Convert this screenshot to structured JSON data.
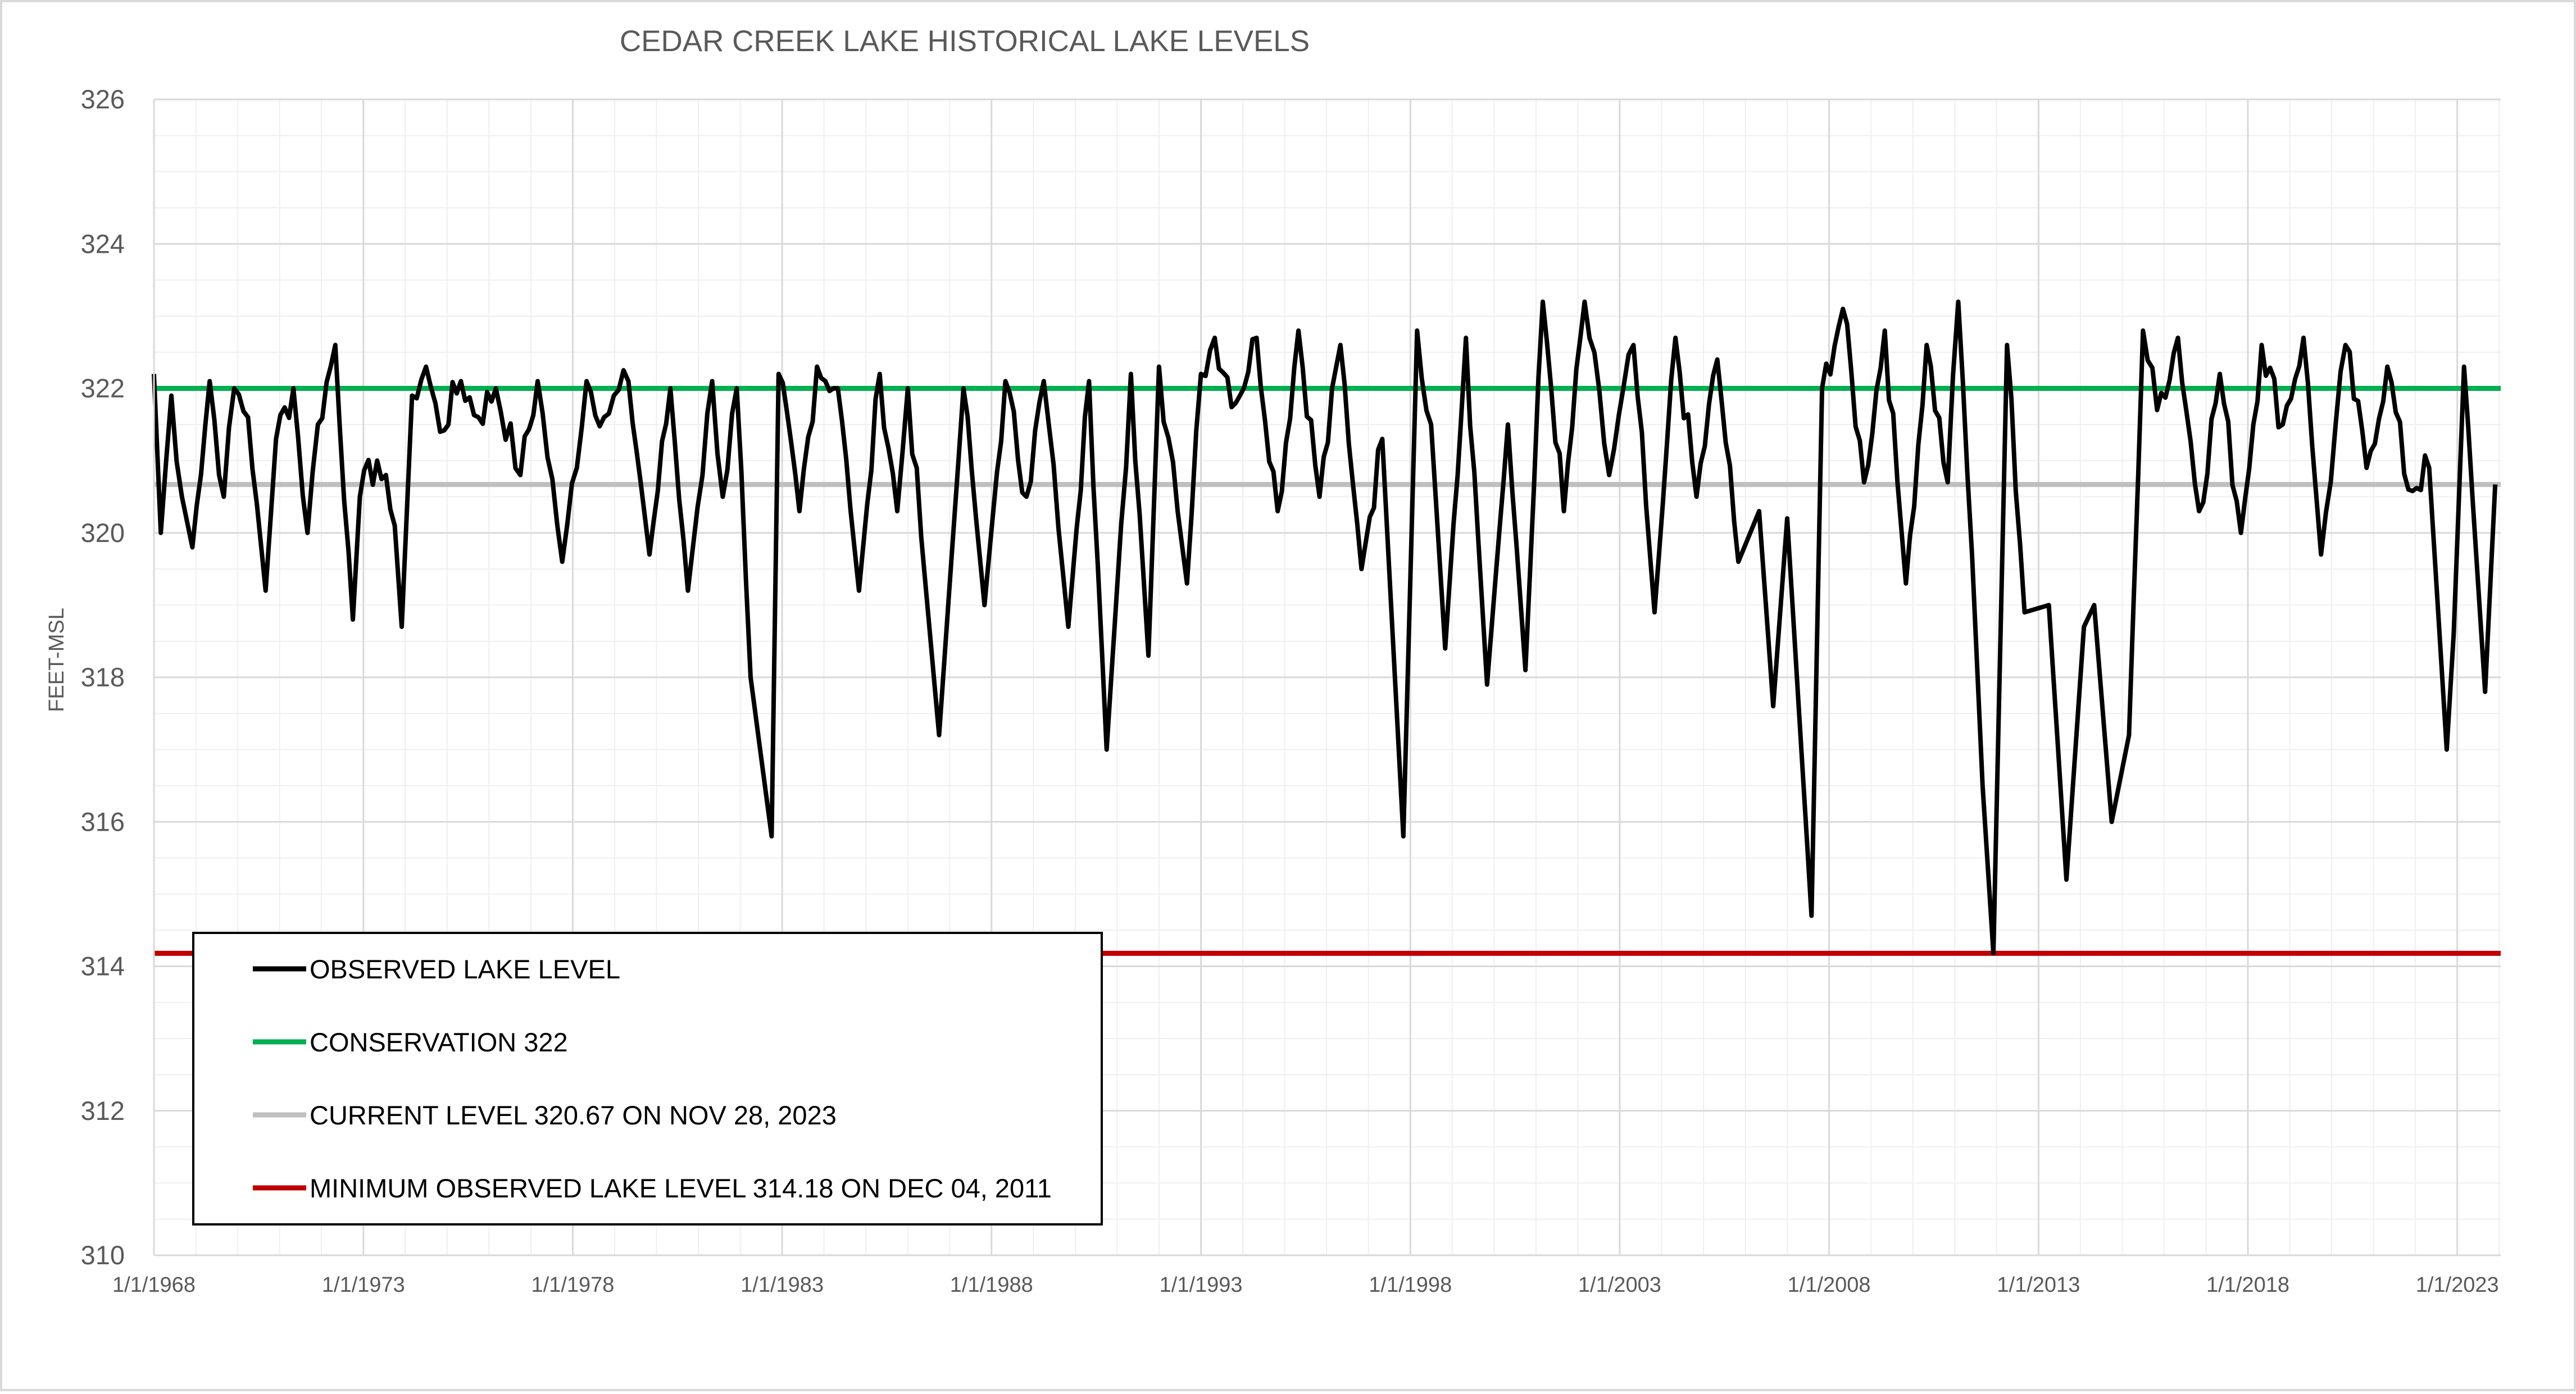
{
  "chart_data": {
    "type": "line",
    "title": "CEDAR CREEK LAKE HISTORICAL LAKE LEVELS",
    "xlabel": "",
    "ylabel": "FEET-MSL",
    "x_axis": "date",
    "xlim": [
      "1968-01-01",
      "2024-01-15"
    ],
    "ylim": [
      310,
      326
    ],
    "y_ticks": [
      "310",
      "312",
      "314",
      "316",
      "318",
      "320",
      "322",
      "324",
      "326"
    ],
    "x_ticks": [
      {
        "date": "1968-01-01",
        "label": "1/1/1968"
      },
      {
        "date": "1973-01-01",
        "label": "1/1/1973"
      },
      {
        "date": "1978-01-01",
        "label": "1/1/1978"
      },
      {
        "date": "1983-01-01",
        "label": "1/1/1983"
      },
      {
        "date": "1988-01-01",
        "label": "1/1/1988"
      },
      {
        "date": "1993-01-01",
        "label": "1/1/1993"
      },
      {
        "date": "1998-01-01",
        "label": "1/1/1998"
      },
      {
        "date": "2003-01-01",
        "label": "1/1/2003"
      },
      {
        "date": "2008-01-01",
        "label": "1/1/2008"
      },
      {
        "date": "2013-01-01",
        "label": "1/1/2013"
      },
      {
        "date": "2018-01-01",
        "label": "1/1/2018"
      },
      {
        "date": "2023-01-01",
        "label": "1/1/2023"
      }
    ],
    "grid": true,
    "legend_position": "bottom-left",
    "reference_lines": [
      {
        "name": "CONSERVATION 322",
        "y": 322.0,
        "color": "#00b050"
      },
      {
        "name": "CURRENT LEVEL 320.67 ON NOV 28, 2023",
        "y": 320.67,
        "color": "#bfbfbf"
      },
      {
        "name": "MINIMUM OBSERVED LAKE LEVEL 314.18 ON DEC 04, 2011",
        "y": 314.18,
        "color": "#c00000"
      }
    ],
    "series": [
      {
        "name": "OBSERVED LAKE LEVEL",
        "color": "#000000",
        "points": [
          [
            "1968-01-01",
            322.2
          ],
          [
            "1968-03-01",
            320.0
          ],
          [
            "1968-06-01",
            321.9
          ],
          [
            "1968-09-01",
            320.5
          ],
          [
            "1968-12-01",
            319.8
          ],
          [
            "1969-05-01",
            322.1
          ],
          [
            "1969-09-01",
            320.5
          ],
          [
            "1969-12-01",
            322.0
          ],
          [
            "1970-04-01",
            321.6
          ],
          [
            "1970-09-01",
            319.2
          ],
          [
            "1970-12-01",
            321.3
          ],
          [
            "1971-05-01",
            322.0
          ],
          [
            "1971-09-01",
            320.0
          ],
          [
            "1971-12-01",
            321.5
          ],
          [
            "1972-05-01",
            322.6
          ],
          [
            "1972-10-01",
            318.8
          ],
          [
            "1972-12-01",
            320.5
          ],
          [
            "1973-05-01",
            321.0
          ],
          [
            "1973-10-01",
            320.1
          ],
          [
            "1973-12-01",
            318.7
          ],
          [
            "1974-03-01",
            321.9
          ],
          [
            "1974-07-01",
            322.3
          ],
          [
            "1974-11-01",
            321.4
          ],
          [
            "1975-05-01",
            322.1
          ],
          [
            "1975-10-01",
            321.6
          ],
          [
            "1976-03-01",
            322.0
          ],
          [
            "1976-10-01",
            320.8
          ],
          [
            "1977-03-01",
            322.1
          ],
          [
            "1977-10-01",
            319.6
          ],
          [
            "1978-05-01",
            322.1
          ],
          [
            "1978-10-01",
            321.6
          ],
          [
            "1979-05-01",
            322.1
          ],
          [
            "1979-11-01",
            319.7
          ],
          [
            "1980-05-01",
            322.0
          ],
          [
            "1980-10-01",
            319.2
          ],
          [
            "1981-05-01",
            322.1
          ],
          [
            "1981-08-01",
            320.5
          ],
          [
            "1981-12-01",
            322.0
          ],
          [
            "1982-04-01",
            318.0
          ],
          [
            "1982-10-01",
            315.8
          ],
          [
            "1982-12-01",
            322.2
          ],
          [
            "1983-06-01",
            320.3
          ],
          [
            "1983-11-01",
            322.3
          ],
          [
            "1984-05-01",
            322.0
          ],
          [
            "1984-11-01",
            319.2
          ],
          [
            "1985-05-01",
            322.2
          ],
          [
            "1985-10-01",
            320.3
          ],
          [
            "1986-01-01",
            322.0
          ],
          [
            "1986-10-01",
            317.2
          ],
          [
            "1987-05-01",
            322.0
          ],
          [
            "1987-11-01",
            319.0
          ],
          [
            "1988-05-01",
            322.1
          ],
          [
            "1988-11-01",
            320.5
          ],
          [
            "1989-04-01",
            322.1
          ],
          [
            "1989-11-01",
            318.7
          ],
          [
            "1990-05-01",
            322.1
          ],
          [
            "1990-10-01",
            317.0
          ],
          [
            "1991-05-01",
            322.2
          ],
          [
            "1991-10-01",
            318.3
          ],
          [
            "1992-01-01",
            322.3
          ],
          [
            "1992-09-01",
            319.3
          ],
          [
            "1993-01-01",
            322.2
          ],
          [
            "1993-05-01",
            322.7
          ],
          [
            "1993-11-01",
            321.8
          ],
          [
            "1994-05-01",
            322.7
          ],
          [
            "1994-11-01",
            320.3
          ],
          [
            "1995-05-01",
            322.8
          ],
          [
            "1995-11-01",
            320.5
          ],
          [
            "1996-05-01",
            322.6
          ],
          [
            "1996-11-01",
            319.5
          ],
          [
            "1997-05-01",
            321.3
          ],
          [
            "1997-11-01",
            315.8
          ],
          [
            "1998-03-01",
            322.8
          ],
          [
            "1998-07-01",
            321.5
          ],
          [
            "1998-11-01",
            318.4
          ],
          [
            "1999-05-01",
            322.7
          ],
          [
            "1999-11-01",
            317.9
          ],
          [
            "2000-05-01",
            321.5
          ],
          [
            "2000-10-01",
            318.1
          ],
          [
            "2001-03-01",
            323.2
          ],
          [
            "2001-09-01",
            320.3
          ],
          [
            "2002-03-01",
            323.2
          ],
          [
            "2002-10-01",
            320.8
          ],
          [
            "2003-05-01",
            322.6
          ],
          [
            "2003-11-01",
            318.9
          ],
          [
            "2004-05-01",
            322.7
          ],
          [
            "2004-11-01",
            320.5
          ],
          [
            "2005-05-01",
            322.4
          ],
          [
            "2005-11-01",
            319.6
          ],
          [
            "2006-05-01",
            320.3
          ],
          [
            "2006-09-01",
            317.6
          ],
          [
            "2007-01-01",
            320.2
          ],
          [
            "2007-08-01",
            314.7
          ],
          [
            "2007-11-01",
            322.0
          ],
          [
            "2008-05-01",
            323.1
          ],
          [
            "2008-11-01",
            320.7
          ],
          [
            "2009-05-01",
            322.8
          ],
          [
            "2009-11-01",
            319.3
          ],
          [
            "2010-05-01",
            322.6
          ],
          [
            "2010-11-01",
            320.7
          ],
          [
            "2011-02-01",
            323.2
          ],
          [
            "2011-06-01",
            319.7
          ],
          [
            "2011-09-01",
            316.5
          ],
          [
            "2011-12-04",
            314.18
          ],
          [
            "2012-04-01",
            322.6
          ],
          [
            "2012-09-01",
            318.9
          ],
          [
            "2013-04-01",
            319.0
          ],
          [
            "2013-09-01",
            315.2
          ],
          [
            "2014-02-01",
            318.7
          ],
          [
            "2014-05-01",
            319.0
          ],
          [
            "2014-10-01",
            316.0
          ],
          [
            "2015-03-01",
            317.2
          ],
          [
            "2015-07-01",
            322.8
          ],
          [
            "2015-11-01",
            321.7
          ],
          [
            "2016-05-01",
            322.7
          ],
          [
            "2016-11-01",
            320.3
          ],
          [
            "2017-05-01",
            322.2
          ],
          [
            "2017-11-01",
            320.0
          ],
          [
            "2018-05-01",
            322.6
          ],
          [
            "2018-11-01",
            321.5
          ],
          [
            "2019-05-01",
            322.7
          ],
          [
            "2019-10-01",
            319.7
          ],
          [
            "2020-05-01",
            322.6
          ],
          [
            "2020-11-01",
            320.9
          ],
          [
            "2021-05-01",
            322.3
          ],
          [
            "2021-11-01",
            320.6
          ],
          [
            "2022-05-01",
            320.9
          ],
          [
            "2022-10-01",
            317.0
          ],
          [
            "2022-12-01",
            318.6
          ],
          [
            "2023-03-01",
            322.3
          ],
          [
            "2023-09-01",
            317.8
          ],
          [
            "2023-11-28",
            320.67
          ]
        ]
      }
    ]
  },
  "legend": {
    "items": [
      {
        "label": "OBSERVED LAKE LEVEL",
        "color": "#000000"
      },
      {
        "label": "CONSERVATION 322",
        "color": "#00b050"
      },
      {
        "label": "CURRENT LEVEL 320.67 ON NOV 28, 2023",
        "color": "#bfbfbf"
      },
      {
        "label": "MINIMUM OBSERVED LAKE LEVEL 314.18 ON DEC 04, 2011",
        "color": "#c00000"
      }
    ]
  }
}
